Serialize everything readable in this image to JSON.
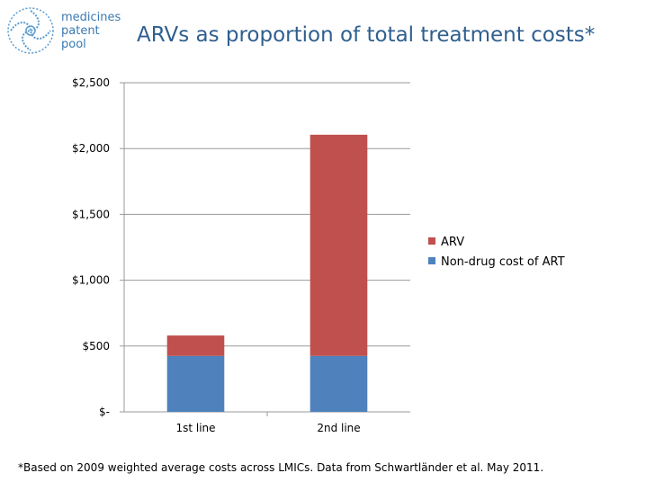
{
  "logo": {
    "line1": "medicines",
    "line2": "patent",
    "line3": "pool",
    "icon": "logo-swirl-icon"
  },
  "title": "ARVs as proportion of total treatment costs*",
  "colors": {
    "arv": "#C0504D",
    "non_drug": "#4F81BD",
    "title": "#2f5f8f",
    "logo_text": "#3a7ab0"
  },
  "chart_data": {
    "type": "bar",
    "stacked": true,
    "title": "ARVs as proportion of total treatment costs*",
    "categories": [
      "1st line",
      "2nd line"
    ],
    "series": [
      {
        "name": "Non-drug cost of ART",
        "values": [
          425,
          425
        ],
        "color": "#4F81BD"
      },
      {
        "name": "ARV",
        "values": [
          155,
          1680
        ],
        "color": "#C0504D"
      }
    ],
    "ylim": [
      0,
      2500
    ],
    "yticks": [
      0,
      500,
      1000,
      1500,
      2000,
      2500
    ],
    "ytick_labels": [
      "$-",
      "$500",
      "$1,000",
      "$1,500",
      "$2,000",
      "$2,500"
    ],
    "xlabel": "",
    "ylabel": "",
    "grid": true,
    "legend_position": "right"
  },
  "legend": [
    {
      "label": "ARV",
      "color": "#C0504D"
    },
    {
      "label": "Non-drug cost of ART",
      "color": "#4F81BD"
    }
  ],
  "footnote": "*Based on 2009 weighted average costs across LMICs. Data from Schwartländer et al. May 2011."
}
